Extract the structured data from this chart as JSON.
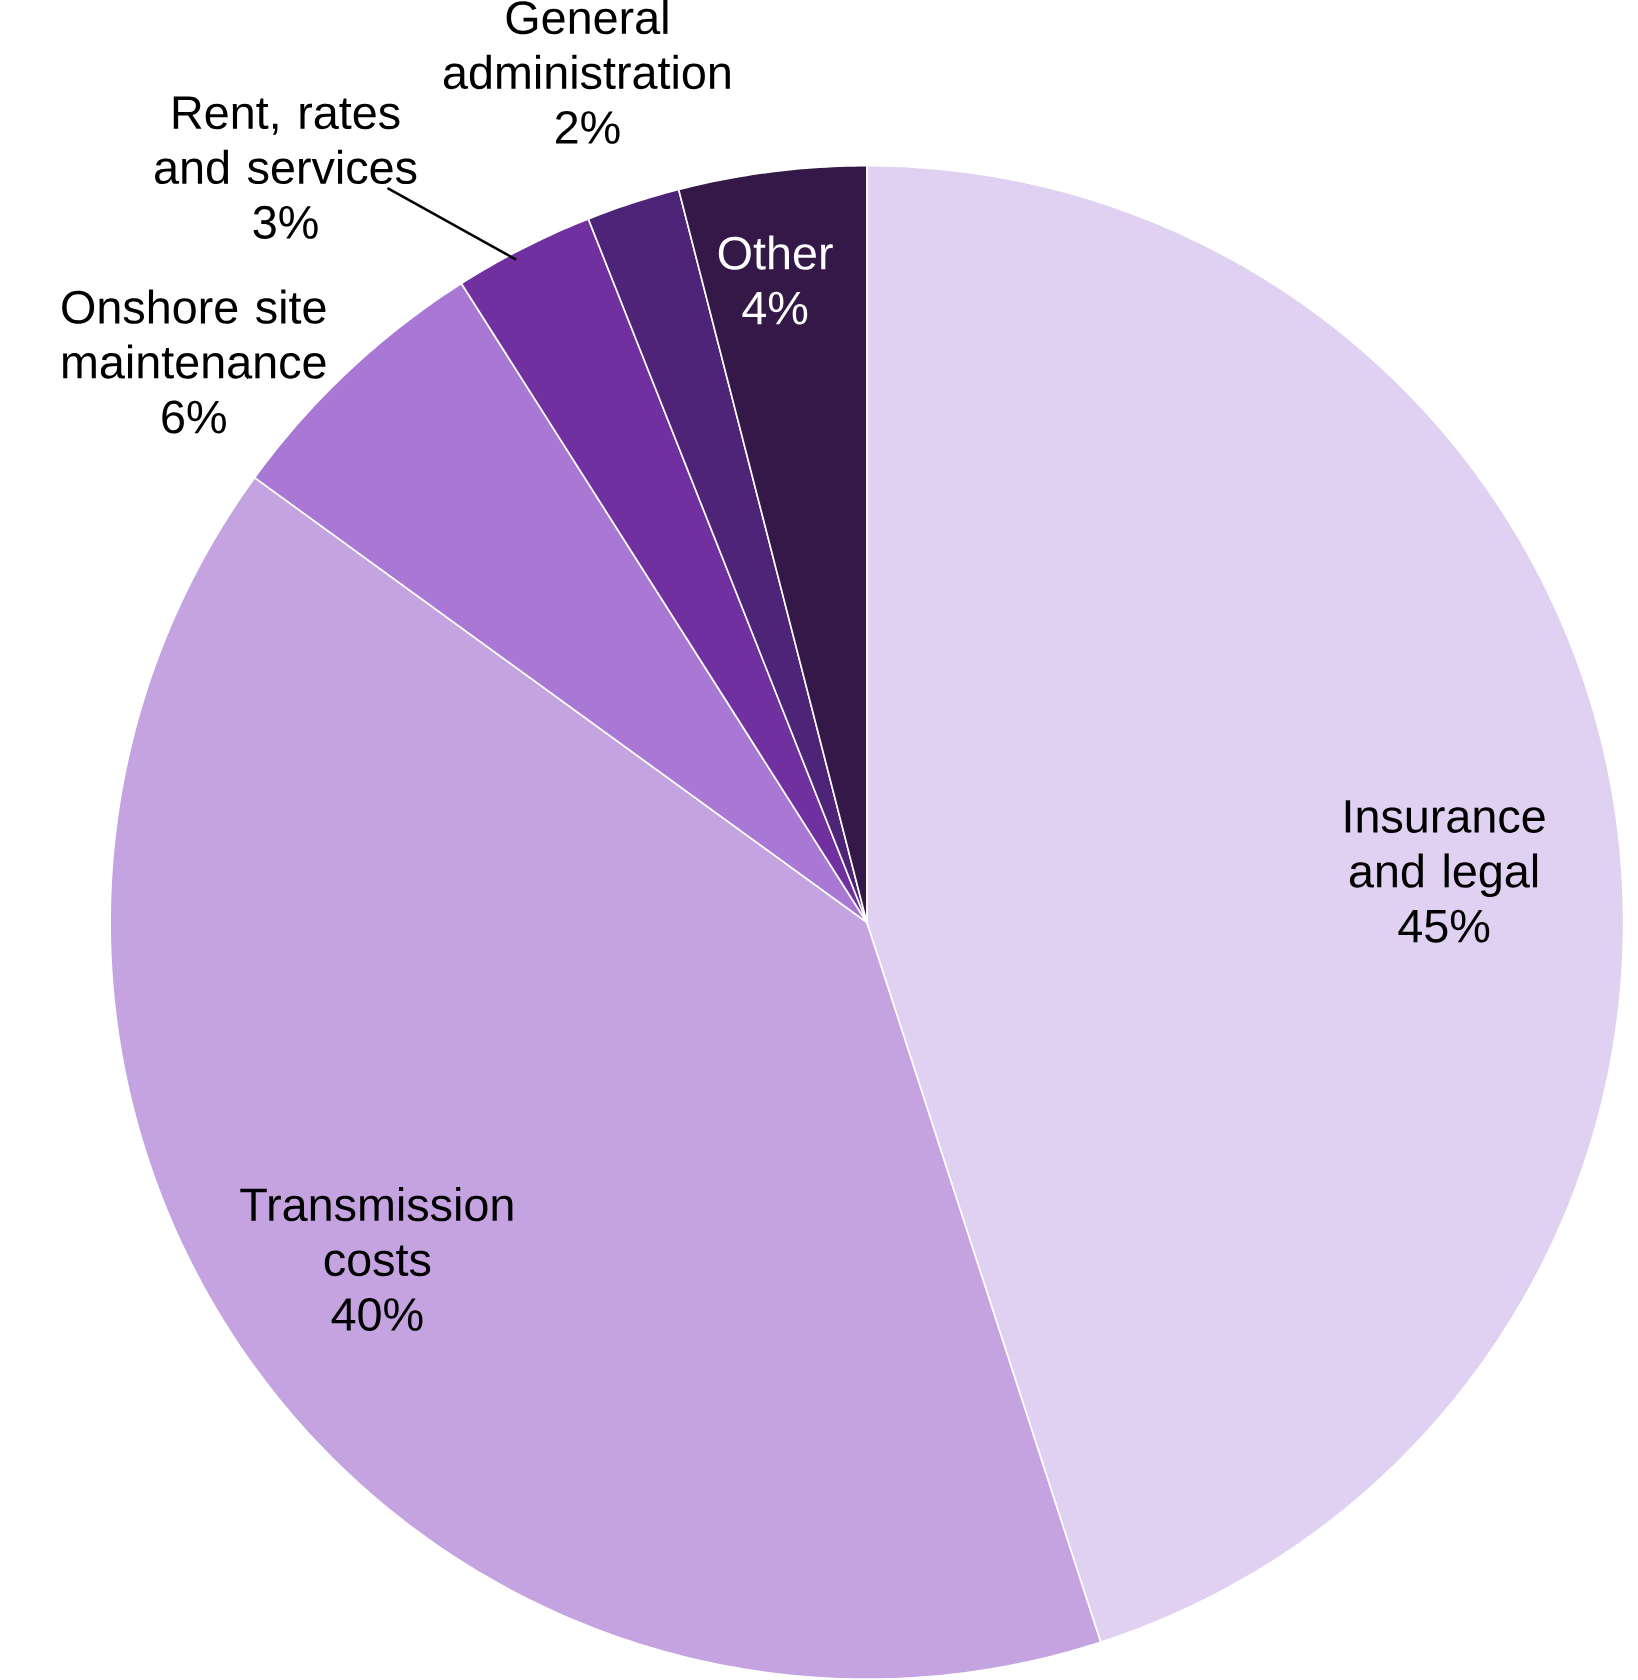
{
  "chart_data": {
    "type": "pie",
    "categories": [
      "Insurance and legal",
      "Transmission costs",
      "Onshore site maintenance",
      "Rent, rates and services",
      "General administration",
      "Other"
    ],
    "values": [
      45,
      40,
      6,
      3,
      2,
      4
    ],
    "colors": [
      "#e0d0f2",
      "#c4a3e0",
      "#a878d4",
      "#7030a0",
      "#4e2478",
      "#341848"
    ],
    "value_labels": [
      "45%",
      "40%",
      "6%",
      "3%",
      "2%",
      "4%"
    ]
  }
}
